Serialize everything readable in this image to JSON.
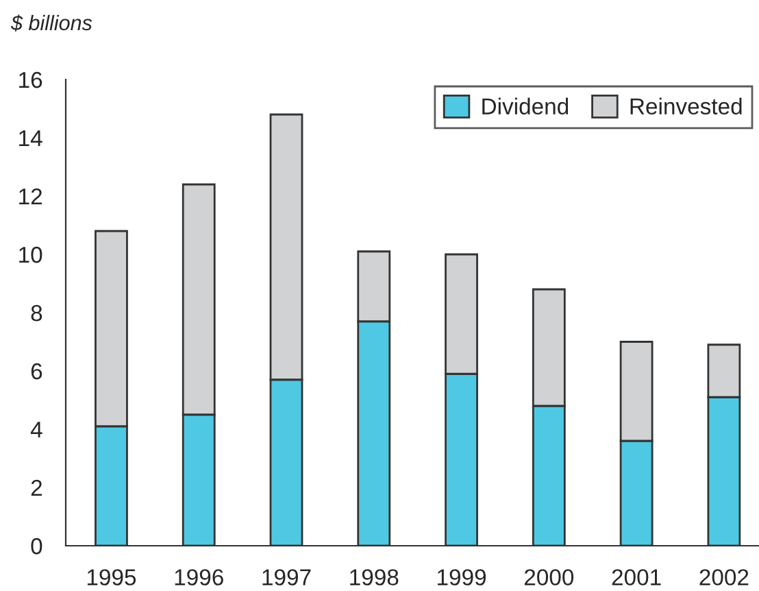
{
  "chart_data": {
    "type": "bar",
    "stacked": true,
    "ylabel": "$ billions",
    "categories": [
      "1995",
      "1996",
      "1997",
      "1998",
      "1999",
      "2000",
      "2001",
      "2002"
    ],
    "series": [
      {
        "name": "Dividend",
        "color": "#4fc8e4",
        "values": [
          4.1,
          4.5,
          5.7,
          7.7,
          5.9,
          4.8,
          3.6,
          5.1
        ]
      },
      {
        "name": "Reinvested",
        "color": "#d1d2d4",
        "values": [
          6.7,
          7.9,
          9.1,
          2.4,
          4.1,
          4.0,
          3.4,
          1.8
        ]
      }
    ],
    "ylim": [
      0,
      16
    ],
    "yticks": [
      0,
      2,
      4,
      6,
      8,
      10,
      12,
      14,
      16
    ],
    "grid": false,
    "legend": "top right"
  }
}
